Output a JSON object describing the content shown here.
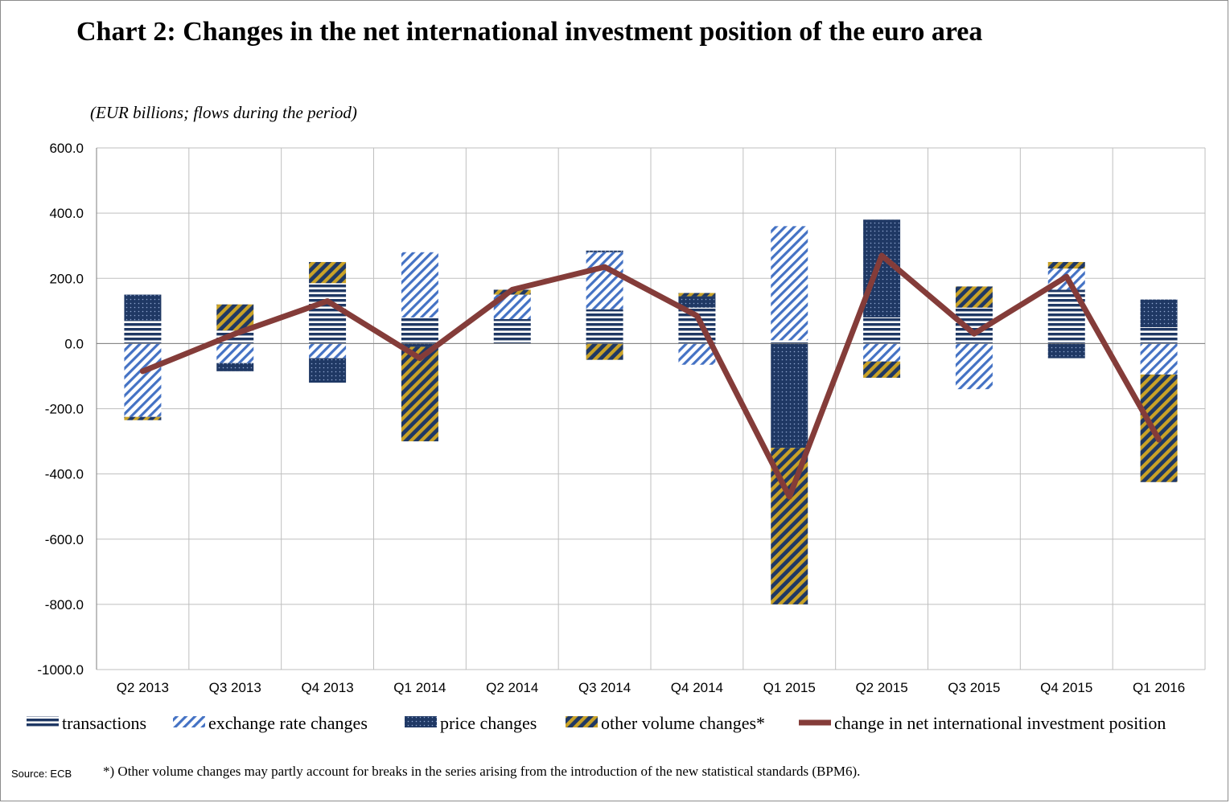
{
  "title": "Chart 2: Changes in the net international investment position of the euro area",
  "subtitle": "(EUR billions; flows during the period)",
  "source": "Source: ECB",
  "footnote": "*) Other volume changes may partly account for breaks in the series  arising  from the introduction  of  the new statistical standards (BPM6).",
  "colors": {
    "navy": "#1f3864",
    "blue": "#4472c4",
    "gold": "#c9a227",
    "line": "#843c39",
    "grid": "#bfbfbf"
  },
  "chart_data": {
    "type": "bar",
    "stacked": true,
    "categories": [
      "Q2 2013",
      "Q3 2013",
      "Q4 2013",
      "Q1 2014",
      "Q2 2014",
      "Q3 2014",
      "Q4 2014",
      "Q1 2015",
      "Q2 2015",
      "Q3 2015",
      "Q4 2015",
      "Q1 2016"
    ],
    "ylim": [
      -1000,
      600
    ],
    "yticks": [
      600,
      400,
      200,
      0,
      -200,
      -400,
      -600,
      -800,
      -1000
    ],
    "ytick_labels": [
      "600.0",
      "400.0",
      "200.0",
      "0.0",
      "-200.0",
      "-400.0",
      "-600.0",
      "-800.0",
      "-1000.0"
    ],
    "grid": true,
    "legend_position": "bottom",
    "series": [
      {
        "name": "transactions",
        "pattern": "horizontal-lines",
        "values": [
          70,
          40,
          185,
          80,
          75,
          105,
          110,
          10,
          80,
          110,
          165,
          50
        ]
      },
      {
        "name": "exchange rate changes",
        "pattern": "diagonal-lines",
        "values": [
          -225,
          -60,
          -45,
          200,
          75,
          175,
          -65,
          350,
          -55,
          -140,
          65,
          -95
        ]
      },
      {
        "name": "price changes",
        "pattern": "dots",
        "values": [
          80,
          -25,
          -75,
          -10,
          0,
          5,
          35,
          -320,
          300,
          0,
          -45,
          85
        ]
      },
      {
        "name": "other volume changes*",
        "pattern": "gold-stripes",
        "values": [
          -10,
          80,
          65,
          -290,
          15,
          -50,
          10,
          -480,
          -50,
          65,
          20,
          -330
        ]
      },
      {
        "name": "change in net international investment position",
        "type": "line",
        "values": [
          -85,
          30,
          130,
          -45,
          165,
          235,
          85,
          -470,
          270,
          30,
          205,
          -295
        ]
      }
    ]
  }
}
